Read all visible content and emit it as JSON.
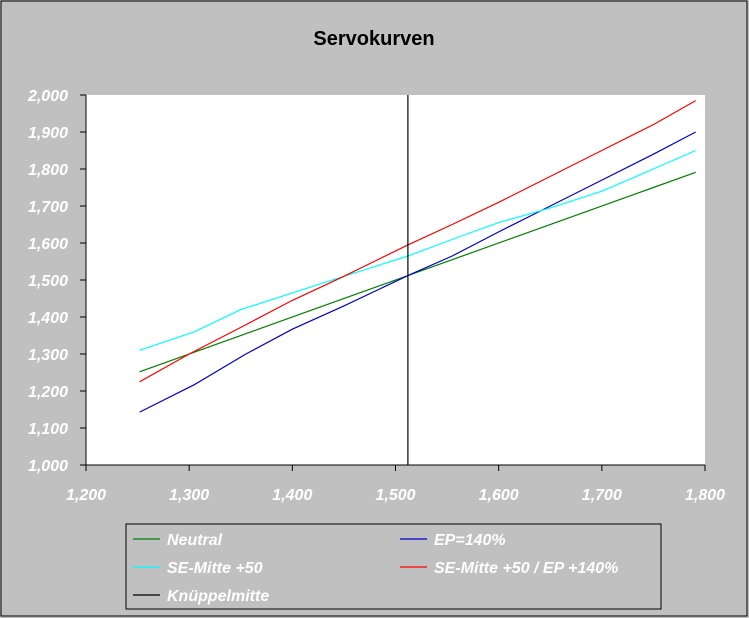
{
  "chart_data": {
    "type": "line",
    "title": "Servokurven",
    "xlabel": "",
    "ylabel": "",
    "xlim": [
      1200,
      1800
    ],
    "ylim": [
      1000,
      2000
    ],
    "x_ticks": [
      "1,200",
      "1,300",
      "1,400",
      "1,500",
      "1,600",
      "1,700",
      "1,800"
    ],
    "x_tick_values": [
      1200,
      1300,
      1400,
      1500,
      1600,
      1700,
      1800
    ],
    "y_ticks": [
      "1,000",
      "1,100",
      "1,200",
      "1,300",
      "1,400",
      "1,500",
      "1,600",
      "1,700",
      "1,800",
      "1,900",
      "2,000"
    ],
    "y_tick_values": [
      1000,
      1100,
      1200,
      1300,
      1400,
      1500,
      1600,
      1700,
      1800,
      1900,
      2000
    ],
    "grid": false,
    "legend_placement": "bottom",
    "series": [
      {
        "name": "Neutral",
        "color": "#008000",
        "x": [
          1252,
          1310,
          1360,
          1410,
          1460,
          1512,
          1560,
          1610,
          1660,
          1710,
          1750,
          1791
        ],
        "y": [
          1252,
          1310,
          1360,
          1410,
          1460,
          1512,
          1560,
          1610,
          1660,
          1710,
          1750,
          1791
        ]
      },
      {
        "name": "EP=140%",
        "color": "#0000cc",
        "x": [
          1252,
          1305,
          1355,
          1400,
          1450,
          1512,
          1555,
          1600,
          1650,
          1700,
          1750,
          1791
        ],
        "y": [
          1143,
          1217,
          1300,
          1367,
          1430,
          1512,
          1565,
          1630,
          1700,
          1770,
          1840,
          1900
        ]
      },
      {
        "name": "SE-Mitte +50",
        "color": "#00ffff",
        "x": [
          1252,
          1305,
          1350,
          1400,
          1450,
          1512,
          1560,
          1600,
          1650,
          1700,
          1750,
          1791
        ],
        "y": [
          1310,
          1360,
          1420,
          1465,
          1510,
          1565,
          1615,
          1655,
          1695,
          1740,
          1800,
          1850
        ]
      },
      {
        "name": "SE-Mitte +50 / EP +140%",
        "color": "#ff0000",
        "x": [
          1252,
          1300,
          1350,
          1400,
          1450,
          1512,
          1555,
          1600,
          1650,
          1700,
          1750,
          1791
        ],
        "y": [
          1225,
          1300,
          1372,
          1445,
          1510,
          1595,
          1650,
          1710,
          1780,
          1850,
          1920,
          1985
        ]
      },
      {
        "name": "Knüppelmitte",
        "color": "#000000",
        "x": [
          1512,
          1512
        ],
        "y": [
          1000,
          2000
        ]
      }
    ]
  }
}
